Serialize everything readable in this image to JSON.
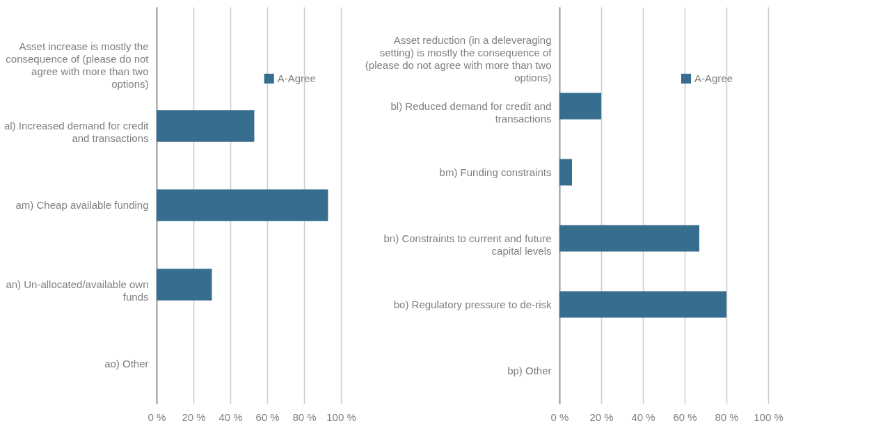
{
  "chart_data": [
    {
      "type": "bar",
      "orientation": "horizontal",
      "categories": [
        "Asset increase is mostly the consequence of (please do not agree with more than two options)",
        "al) Increased demand for credit and transactions",
        "am) Cheap available funding",
        "an) Un-allocated/available own funds",
        "ao) Other"
      ],
      "series": [
        {
          "name": "A-Agree",
          "color": "#376e8f",
          "values": [
            null,
            53,
            93,
            30,
            0
          ]
        }
      ],
      "xlim": [
        0,
        100
      ],
      "xticks": [
        {
          "value": 0,
          "label": "0 %"
        },
        {
          "value": 20,
          "label": "20 %"
        },
        {
          "value": 40,
          "label": "40 %"
        },
        {
          "value": 60,
          "label": "60 %"
        },
        {
          "value": 80,
          "label": "80 %"
        },
        {
          "value": 100,
          "label": "100 %"
        }
      ],
      "grid": "x",
      "legend": "top right"
    },
    {
      "type": "bar",
      "orientation": "horizontal",
      "categories": [
        "Asset reduction (in a deleveraging setting) is mostly the consequence of (please do not agree with more than two options)",
        "bl) Reduced demand for credit and transactions",
        "bm) Funding constraints",
        "bn) Constraints to current and future capital levels",
        "bo) Regulatory pressure to de-risk",
        "bp) Other"
      ],
      "series": [
        {
          "name": "A-Agree",
          "color": "#376e8f",
          "values": [
            null,
            20,
            6,
            67,
            80,
            0
          ]
        }
      ],
      "xlim": [
        0,
        100
      ],
      "xticks": [
        {
          "value": 0,
          "label": "0 %"
        },
        {
          "value": 20,
          "label": "20 %"
        },
        {
          "value": 40,
          "label": "40 %"
        },
        {
          "value": 60,
          "label": "60 %"
        },
        {
          "value": 80,
          "label": "80 %"
        },
        {
          "value": 100,
          "label": "100 %"
        }
      ],
      "grid": "x",
      "legend": "top right"
    }
  ]
}
